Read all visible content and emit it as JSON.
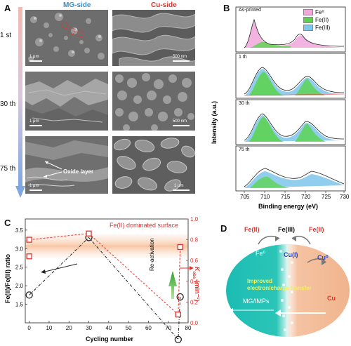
{
  "panel_a": {
    "letter": "A",
    "col_mg": "MG-side",
    "col_cu": "Cu-side",
    "rows": [
      {
        "label": "1 st",
        "mg_scale": "1 μm",
        "cu_scale": "500 nm"
      },
      {
        "label": "30 th",
        "mg_scale": "1 μm",
        "cu_scale": "500 nm"
      },
      {
        "label": "75 th",
        "mg_scale": "1 μm",
        "cu_scale": "1 μm"
      }
    ],
    "oxide_label": "Oxide layer",
    "colors": {
      "mg": "#3a8dc4",
      "cu": "#e0332e"
    }
  },
  "panel_b": {
    "letter": "B",
    "legend": [
      "Fe⁰",
      "Fe(II)",
      "Fe(III)"
    ],
    "legend_colors": [
      "#f1a6dc",
      "#59d44a",
      "#7ec6ea"
    ],
    "spectra": [
      "As-printed",
      "1 th",
      "30 th",
      "75 th"
    ],
    "ylabel": "Intensity (a.u.)",
    "xlabel": "Binding energy (eV)",
    "xticks": [
      "705",
      "710",
      "715",
      "720",
      "725",
      "730"
    ]
  },
  "panel_c": {
    "letter": "C",
    "annotation": "Fe(II) dominated surface",
    "reactivation": "Re-activation",
    "ylabel_left": "Fe(II)/Fe(III) ratio",
    "ylabel_right_main": "K",
    "ylabel_right_sub": "obs",
    "ylabel_right_unit": " (min⁻¹)",
    "xlabel": "Cycling number"
  },
  "panel_d": {
    "letter": "D",
    "fe2_left": "Fe(II)",
    "fe3": "Fe(III)",
    "fe2_right": "Fe(II)",
    "fe0": "Fe⁰",
    "cu1": "Cu(I)",
    "cu0": "Cu⁰",
    "improved_line1": "Improved",
    "improved_line2": "electron/charge transfer",
    "mg": "MG/IMPs",
    "cu": "Cu"
  },
  "chart_data": {
    "type": "line",
    "xlabel": "Cycling number",
    "xlim": [
      -2,
      80
    ],
    "xticks": [
      0,
      10,
      20,
      30,
      40,
      50,
      60,
      70,
      80
    ],
    "series": [
      {
        "axis": "left",
        "ylim": [
          1.0,
          3.8
        ],
        "yticks": [
          1.5,
          2.0,
          2.5,
          3.0,
          3.5
        ],
        "x": [
          0,
          30,
          75,
          76
        ],
        "y": [
          1.75,
          3.3,
          0.55,
          1.7
        ],
        "marker": "circle",
        "color": "#222222"
      },
      {
        "axis": "right",
        "ylim": [
          0.0,
          1.0
        ],
        "yticks": [
          0.0,
          0.2,
          0.4,
          0.6,
          0.8,
          1.0
        ],
        "x": [
          0,
          30,
          75,
          76
        ],
        "y": [
          0.8,
          0.86,
          0.08,
          0.73
        ],
        "marker": "square",
        "color": "#e0332e",
        "extra_points": [
          {
            "x": 0,
            "y": 0.64
          }
        ]
      }
    ]
  }
}
